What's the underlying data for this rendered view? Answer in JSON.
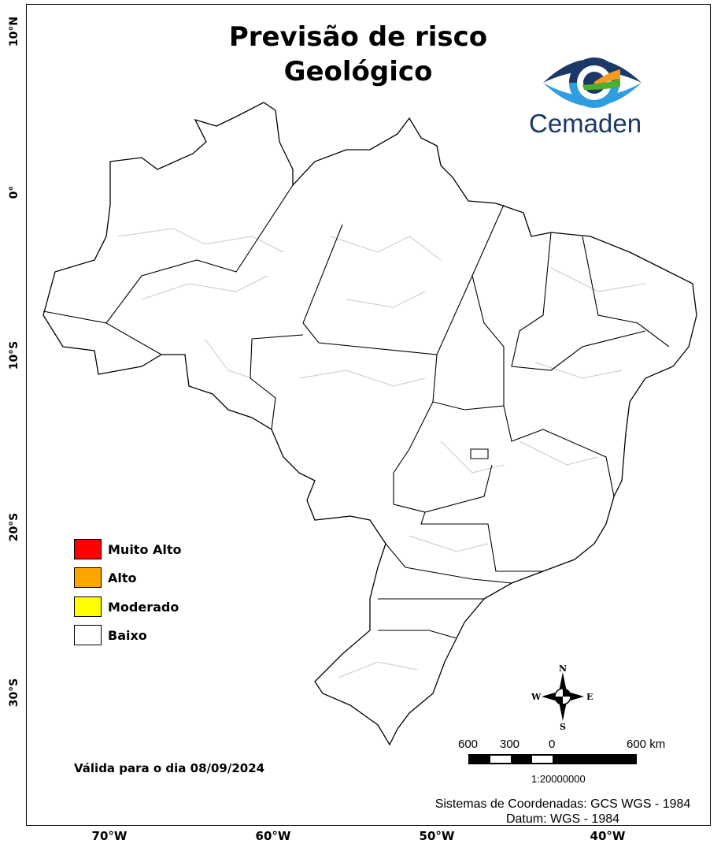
{
  "title": {
    "line1": "Previsão de risco",
    "line2": "Geológico"
  },
  "logo": {
    "text": "Cemaden",
    "colors": {
      "dark": "#1b3866",
      "light": "#2e9ee0",
      "orange": "#f29a22",
      "green": "#4caf2f"
    }
  },
  "graticule": {
    "latitudes": [
      "10°N",
      "0°",
      "10°S",
      "20°S",
      "30°S"
    ],
    "longitudes": [
      "70°W",
      "60°W",
      "50°W",
      "40°W"
    ]
  },
  "legend": [
    {
      "label": "Muito Alto",
      "color": "#ff0000"
    },
    {
      "label": "Alto",
      "color": "#ffa500"
    },
    {
      "label": "Moderado",
      "color": "#ffff00"
    },
    {
      "label": "Baixo",
      "color": "#ffffff"
    }
  ],
  "map": {
    "risk_level_shown": "Baixo",
    "fill": "#ffffff",
    "state_border": "#000000",
    "municipal_border": "#c8c8c8"
  },
  "validity": "Válida para o dia 08/09/2024",
  "compass": {
    "n": "N",
    "s": "S",
    "e": "E",
    "w": "W"
  },
  "scale": {
    "labels": [
      "600",
      "300",
      "0",
      "600 km"
    ],
    "ratio": "1:20000000"
  },
  "coordinates": {
    "system": "Sistemas de Coordenadas: GCS WGS - 1984",
    "datum": "Datum: WGS - 1984"
  }
}
